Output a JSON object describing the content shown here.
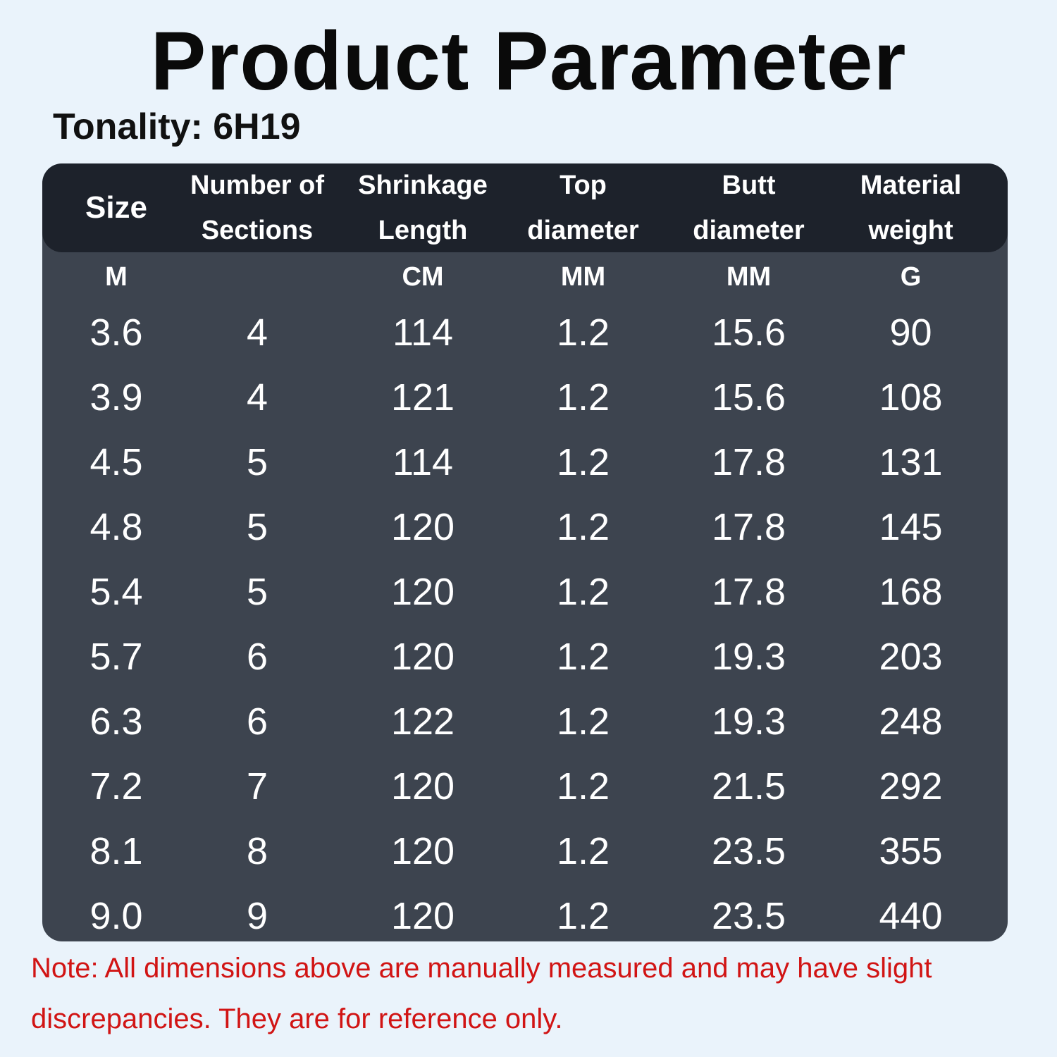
{
  "title": "Product Parameter",
  "tonality": "Tonality: 6H19",
  "table": {
    "headers": [
      {
        "line1": "Size",
        "line2": ""
      },
      {
        "line1": "Number of",
        "line2": "Sections"
      },
      {
        "line1": "Shrinkage",
        "line2": "Length"
      },
      {
        "line1": "Top",
        "line2": "diameter"
      },
      {
        "line1": "Butt",
        "line2": "diameter"
      },
      {
        "line1": "Material",
        "line2": "weight"
      }
    ],
    "units": [
      "M",
      "",
      "CM",
      "MM",
      "MM",
      "G"
    ],
    "rows": [
      [
        "3.6",
        "4",
        "114",
        "1.2",
        "15.6",
        "90"
      ],
      [
        "3.9",
        "4",
        "121",
        "1.2",
        "15.6",
        "108"
      ],
      [
        "4.5",
        "5",
        "114",
        "1.2",
        "17.8",
        "131"
      ],
      [
        "4.8",
        "5",
        "120",
        "1.2",
        "17.8",
        "145"
      ],
      [
        "5.4",
        "5",
        "120",
        "1.2",
        "17.8",
        "168"
      ],
      [
        "5.7",
        "6",
        "120",
        "1.2",
        "19.3",
        "203"
      ],
      [
        "6.3",
        "6",
        "122",
        "1.2",
        "19.3",
        "248"
      ],
      [
        "7.2",
        "7",
        "120",
        "1.2",
        "21.5",
        "292"
      ],
      [
        "8.1",
        "8",
        "120",
        "1.2",
        "23.5",
        "355"
      ],
      [
        "9.0",
        "9",
        "120",
        "1.2",
        "23.5",
        "440"
      ]
    ]
  },
  "note": "Note: All dimensions above are manually measured and may have slight discrepancies. They are for reference only.",
  "colors": {
    "background": "#eaf3fb",
    "table_body": "#3d444f",
    "table_header": "#1d222b",
    "note_text": "#d11414"
  }
}
